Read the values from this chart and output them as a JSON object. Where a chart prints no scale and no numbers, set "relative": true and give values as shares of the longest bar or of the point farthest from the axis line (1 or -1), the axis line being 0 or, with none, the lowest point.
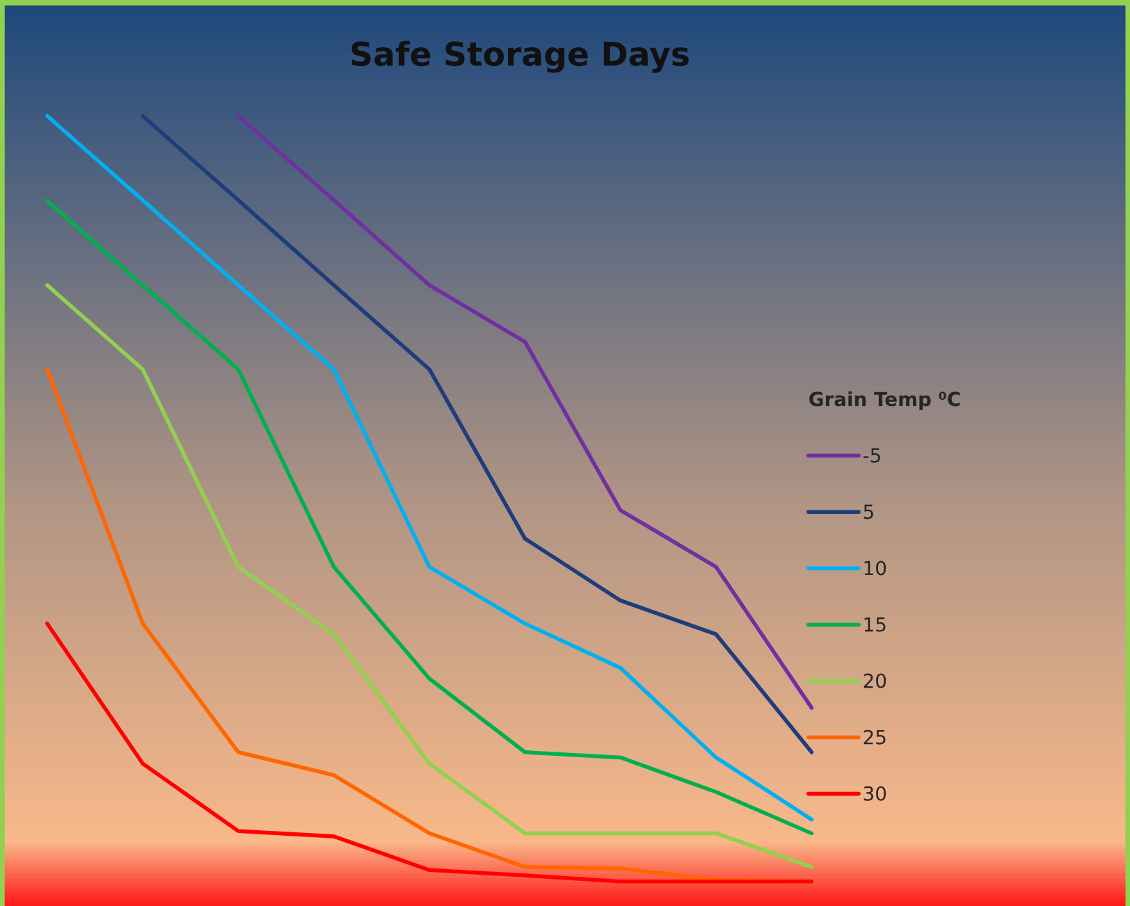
{
  "chart_data": {
    "type": "line",
    "title": "Safe Storage Days",
    "legend_title": "Grain Temp ⁰C",
    "relative": true,
    "legend": "right",
    "categories": [
      null,
      null,
      null,
      null,
      null,
      null,
      null,
      null,
      null
    ],
    "series": [
      {
        "name": "-5",
        "color": "#7030a0",
        "values": [
          null,
          null,
          1.0,
          0.89,
          0.779,
          0.705,
          0.485,
          0.411,
          0.227
        ]
      },
      {
        "name": "5",
        "color": "#1f3d7a",
        "values": [
          null,
          1.0,
          0.89,
          0.779,
          0.669,
          0.448,
          0.367,
          0.323,
          0.169
        ]
      },
      {
        "name": "10",
        "color": "#00b0f0",
        "values": [
          1.0,
          0.89,
          0.779,
          0.669,
          0.411,
          0.337,
          0.279,
          0.162,
          0.081
        ]
      },
      {
        "name": "15",
        "color": "#00b050",
        "values": [
          0.889,
          0.779,
          0.669,
          0.411,
          0.265,
          0.169,
          0.162,
          0.117,
          0.063
        ]
      },
      {
        "name": "20",
        "color": "#92d050",
        "values": [
          0.779,
          0.669,
          0.411,
          0.323,
          0.154,
          0.063,
          0.063,
          0.063,
          0.019
        ]
      },
      {
        "name": "25",
        "color": "#ff6600",
        "values": [
          0.669,
          0.337,
          0.169,
          0.139,
          0.063,
          0.019,
          0.017,
          0.002,
          0.0
        ]
      },
      {
        "name": "30",
        "color": "#ff0000",
        "values": [
          0.337,
          0.154,
          0.066,
          0.059,
          0.015,
          0.008,
          0.0,
          0.0,
          0.0
        ]
      }
    ]
  }
}
